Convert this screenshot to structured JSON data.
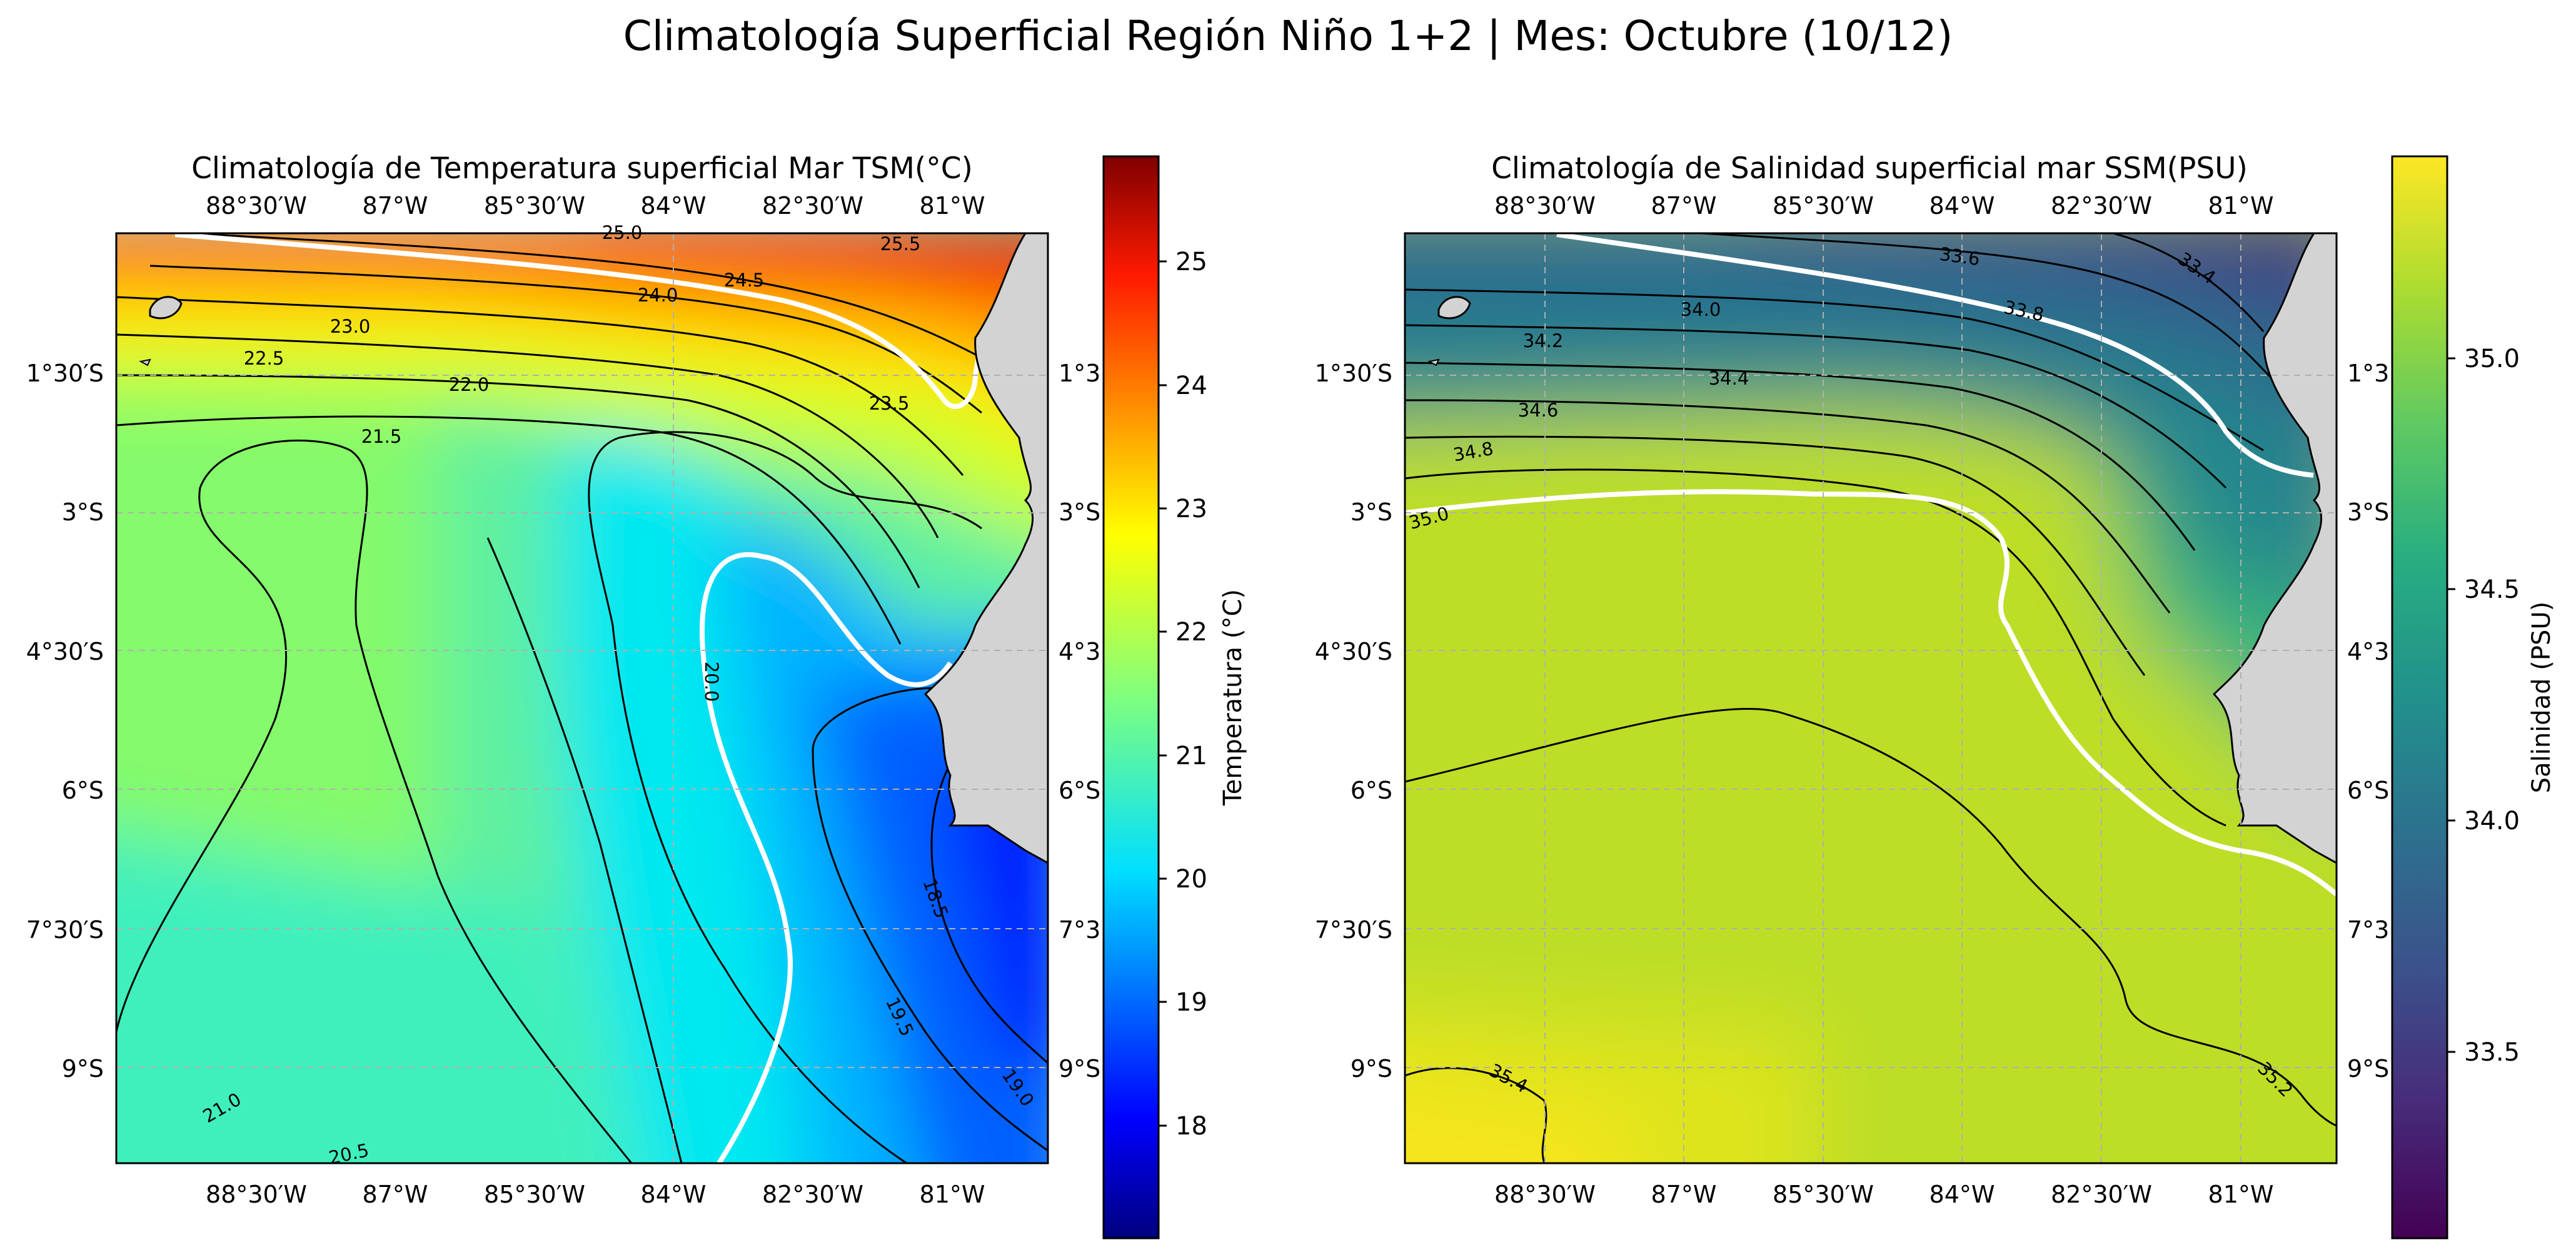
{
  "suptitle": "Climatología Superficial Región Niño 1+2 | Mes: Octubre (10/12)",
  "lon_ticks": [
    "88°30′W",
    "87°W",
    "85°30′W",
    "84°W",
    "82°30′W",
    "81°W"
  ],
  "lat_ticks": [
    "1°30′S",
    "3°S",
    "4°30′S",
    "6°S",
    "7°30′S",
    "9°S"
  ],
  "lat_ticks_right": [
    "1°3",
    "3°S",
    "4°3",
    "6°S",
    "7°3",
    "9°S"
  ],
  "colors": {
    "land": "#d3d3d3",
    "grid": "#b0b0b0",
    "highlight_contour": "#ffffff"
  },
  "panels": [
    {
      "title": "Climatología de Temperatura superficial Mar TSM(°C)",
      "colormap": "jet",
      "colorbar": {
        "label": "Temperatura (°C)",
        "ticks": [
          "25",
          "24",
          "23",
          "22",
          "21",
          "20",
          "19",
          "18"
        ]
      },
      "contour_labels": [
        "25.0",
        "25.5",
        "24.5",
        "24.0",
        "23.0",
        "22.5",
        "22.0",
        "21.5",
        "23.5",
        "20.0",
        "18.5",
        "19.5",
        "19.0",
        "21.0",
        "20.5"
      ]
    },
    {
      "title": "Climatología de Salinidad superficial mar SSM(PSU)",
      "colormap": "viridis",
      "colorbar": {
        "label": "Salinidad (PSU)",
        "ticks": [
          "35.0",
          "34.5",
          "34.0",
          "33.5"
        ]
      },
      "contour_labels": [
        "33.6",
        "33.4",
        "33.8",
        "34.0",
        "34.2",
        "34.4",
        "34.6",
        "34.8",
        "35.0",
        "35.4",
        "35.2"
      ]
    }
  ]
}
